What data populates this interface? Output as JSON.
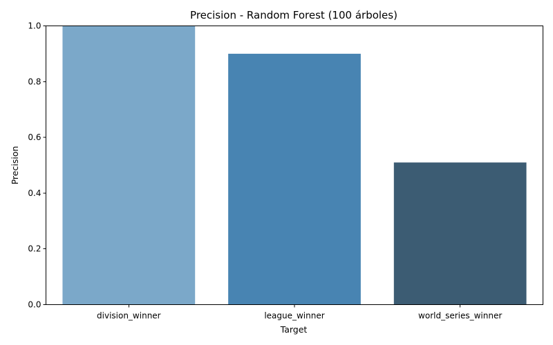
{
  "chart_data": {
    "type": "bar",
    "title": "Precision - Random Forest (100 árboles)",
    "xlabel": "Target",
    "ylabel": "Precision",
    "categories": [
      "division_winner",
      "league_winner",
      "world_series_winner"
    ],
    "values": [
      1.0,
      0.9,
      0.51
    ],
    "colors": [
      "#7ba8c9",
      "#4884b2",
      "#3c5c73"
    ],
    "ylim": [
      0,
      1.0
    ],
    "yticks": [
      0.0,
      0.2,
      0.4,
      0.6,
      0.8,
      1.0
    ],
    "ytick_labels": [
      "0.0",
      "0.2",
      "0.4",
      "0.6",
      "0.8",
      "1.0"
    ],
    "grid": false,
    "legend": "none"
  }
}
